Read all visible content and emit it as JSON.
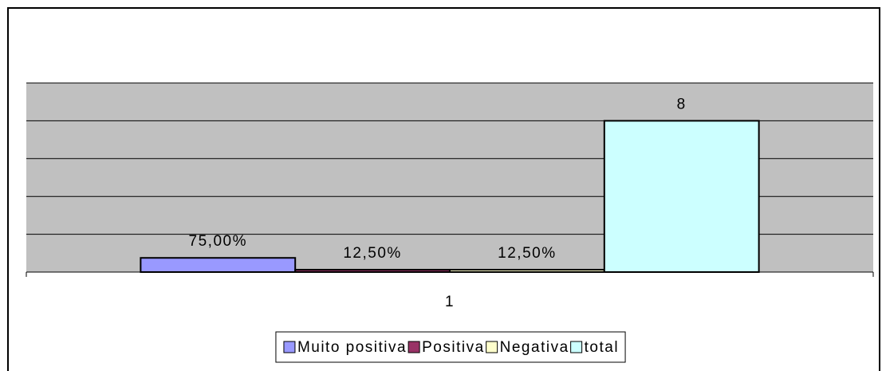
{
  "chart_data": {
    "type": "bar",
    "categories": [
      "1"
    ],
    "series": [
      {
        "name": "Muito positiva",
        "color": "#9999ff",
        "values": [
          0.75
        ],
        "value_labels": [
          "75,00%"
        ]
      },
      {
        "name": "Positiva",
        "color": "#993366",
        "values": [
          0.125
        ],
        "value_labels": [
          "12,50%"
        ]
      },
      {
        "name": "Negativa",
        "color": "#ffffcc",
        "values": [
          0.125
        ],
        "value_labels": [
          "12,50%"
        ]
      },
      {
        "name": "total",
        "color": "#ccffff",
        "values": [
          8
        ],
        "value_labels": [
          "8"
        ]
      }
    ],
    "ylim": [
      0,
      10
    ],
    "yticks": [
      0,
      2,
      4,
      6,
      8,
      10
    ],
    "grid": true,
    "legend": "bottom"
  }
}
